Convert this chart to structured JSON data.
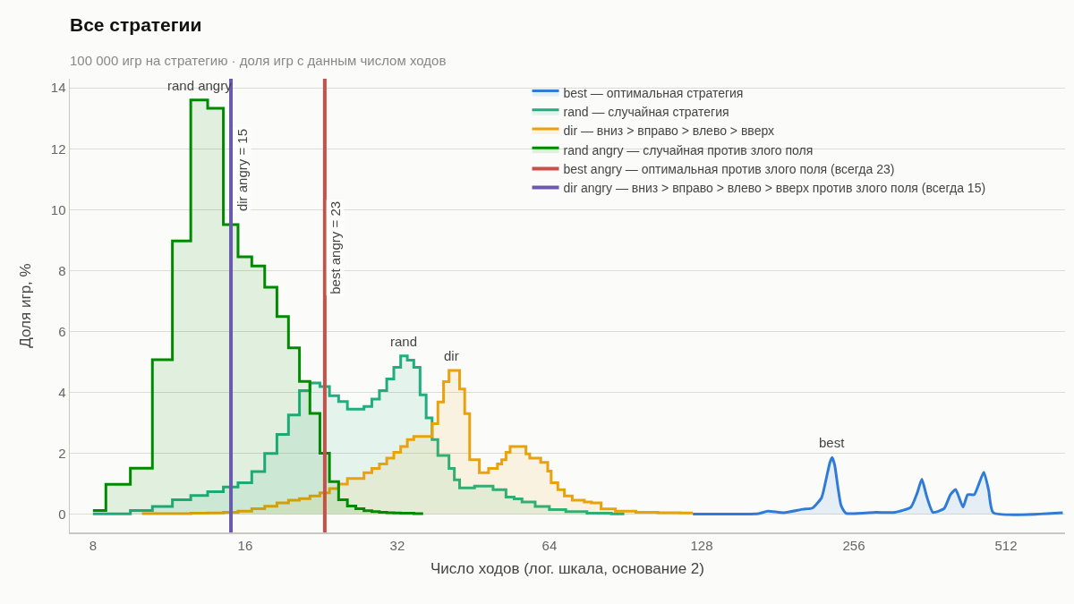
{
  "chart_data": {
    "type": "step",
    "title": "Все стратегии",
    "subtitle": "100 000 игр на стратегию · доля игр с данным числом ходов",
    "xlabel": "Число ходов (лог. шкала, основание 2)",
    "ylabel": "Доля игр, %",
    "log": "x",
    "xlim": [
      7.2,
      670
    ],
    "xticks": [
      8,
      16,
      32,
      64,
      128,
      256,
      512
    ],
    "ylim": [
      -0.6,
      14.3
    ],
    "yticks": [
      0,
      2,
      4,
      6,
      8,
      10,
      12,
      14
    ],
    "grid": "y",
    "legend": "top right",
    "marker": "none",
    "line_style": "solid",
    "series": [
      {
        "name": "best — оптимальная стратегия",
        "type": "area",
        "color": "#2f7bd6",
        "x": [
          123,
          166,
          173,
          186,
          203,
          212,
          221,
          226,
          229.6,
          232,
          234.7,
          238,
          241.6,
          247,
          283,
          309,
          332,
          341.6,
          349,
          356.7,
          367,
          386,
          397.5,
          407,
          421,
          430,
          443,
          462.7,
          473,
          483,
          663
        ],
        "values": [
          0,
          0.02,
          0.1,
          0.05,
          0.16,
          0.2,
          0.54,
          1.2,
          1.7,
          1.86,
          1.6,
          0.9,
          0.28,
          0.03,
          0.06,
          0.06,
          0.23,
          0.69,
          1.15,
          0.59,
          0.06,
          0.18,
          0.64,
          0.81,
          0.23,
          0.64,
          0.64,
          1.38,
          0.79,
          0.05,
          0.05
        ]
      },
      {
        "name": "rand — случайная стратегия",
        "color": "#1fae80",
        "x": [
          8,
          9,
          10,
          11,
          12,
          13,
          14,
          15,
          16,
          17,
          18,
          19,
          20,
          21,
          22,
          23,
          24,
          25,
          26,
          27,
          28,
          29,
          30,
          31,
          32,
          33,
          34,
          35,
          36,
          37,
          38,
          39,
          40,
          41,
          42,
          43,
          44,
          45,
          46,
          47,
          48,
          49,
          50,
          51,
          52,
          53,
          54,
          55,
          58,
          62,
          66,
          72,
          80,
          90
        ],
        "values": [
          0.01,
          0.01,
          0.12,
          0.25,
          0.47,
          0.61,
          0.74,
          0.89,
          1.03,
          1.4,
          1.99,
          2.62,
          3.26,
          4.06,
          4.31,
          4.19,
          3.89,
          3.7,
          3.45,
          3.45,
          3.54,
          3.78,
          4.06,
          4.44,
          4.82,
          5.2,
          5.06,
          4.82,
          3.92,
          3.16,
          2.45,
          1.93,
          1.93,
          1.5,
          1.13,
          0.86,
          0.86,
          0.86,
          0.92,
          0.92,
          0.92,
          0.92,
          0.8,
          0.8,
          0.8,
          0.56,
          0.56,
          0.5,
          0.4,
          0.25,
          0.15,
          0.08,
          0.03,
          0.01
        ]
      },
      {
        "name": "dir — вниз > вправо > влево > вверх",
        "color": "#e8a20c",
        "x": [
          10,
          11,
          12,
          13,
          14,
          15,
          16,
          17,
          18,
          19,
          20,
          21,
          22,
          23,
          24,
          25,
          26,
          27,
          28,
          29,
          30,
          31,
          32,
          33,
          34,
          35,
          36,
          37,
          38,
          39,
          40,
          41,
          42,
          43,
          44,
          45,
          46,
          47,
          48,
          49,
          50,
          51,
          52,
          53,
          54,
          55,
          56,
          57,
          58,
          59,
          60,
          61,
          62,
          63,
          64,
          65,
          66,
          67,
          68,
          69,
          70,
          72,
          74,
          76,
          79,
          83,
          90,
          100,
          110,
          123
        ],
        "values": [
          0.02,
          0.02,
          0.02,
          0.03,
          0.04,
          0.06,
          0.1,
          0.18,
          0.26,
          0.37,
          0.46,
          0.51,
          0.6,
          0.7,
          0.84,
          0.99,
          1.17,
          1.17,
          1.36,
          1.5,
          1.65,
          1.84,
          2.03,
          2.22,
          2.45,
          2.55,
          2.55,
          2.55,
          2.97,
          3.68,
          4.35,
          4.72,
          4.72,
          4.11,
          3.3,
          1.79,
          1.79,
          1.36,
          1.36,
          1.5,
          1.5,
          1.65,
          1.79,
          2.03,
          2.22,
          2.22,
          2.22,
          2.22,
          1.98,
          1.84,
          1.84,
          1.84,
          1.7,
          1.7,
          1.41,
          1.03,
          1.03,
          0.8,
          0.8,
          0.6,
          0.6,
          0.46,
          0.46,
          0.4,
          0.37,
          0.17,
          0.1,
          0.06,
          0.05,
          0.04
        ]
      },
      {
        "name": "rand angry — случайная против злого поля",
        "color": "#008a00",
        "x": [
          8,
          9,
          10,
          11,
          12,
          13,
          14,
          15,
          16,
          17,
          18,
          19,
          20,
          21,
          22,
          23,
          24,
          25,
          26,
          27,
          28,
          29,
          30,
          31,
          32,
          33,
          34,
          35,
          36
        ],
        "values": [
          0.12,
          0.98,
          1.51,
          5.07,
          8.97,
          13.6,
          13.33,
          9.51,
          8.45,
          8.15,
          7.45,
          6.49,
          5.46,
          4.36,
          3.31,
          2.0,
          1.07,
          0.47,
          0.27,
          0.18,
          0.11,
          0.08,
          0.06,
          0.05,
          0.04,
          0.03,
          0.03,
          0.02,
          0.02
        ]
      },
      {
        "name": "best angry — оптимальная против злого поля (всегда 23)",
        "type": "line",
        "color": "#c8504a",
        "x": [
          23,
          23
        ],
        "values": [
          -0.6,
          14.3
        ]
      },
      {
        "name": "dir angry — вниз > вправо > влево > вверх против злого поля (всегда 15)",
        "type": "line",
        "color": "#6a5aad",
        "x": [
          15,
          15
        ],
        "values": [
          -0.6,
          14.3
        ]
      }
    ],
    "annotations": [
      {
        "text": "rand angry",
        "x": 13,
        "y": 13.6
      },
      {
        "text": "rand",
        "x": 33,
        "y": 5.2
      },
      {
        "text": "dir",
        "x": 41,
        "y": 4.72
      },
      {
        "text": "best",
        "x": 232,
        "y": 1.86
      },
      {
        "text": "dir angry = 15",
        "x": 15,
        "y": 11.3
      },
      {
        "text": "best angry = 23",
        "x": 23,
        "y": 8.75
      }
    ]
  }
}
